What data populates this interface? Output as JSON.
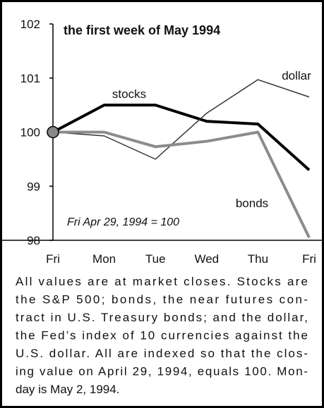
{
  "chart_data": {
    "type": "line",
    "title": "the first week of May 1994",
    "annotation": "Fri Apr 29, 1994 = 100",
    "categories": [
      "Fri",
      "Mon",
      "Tue",
      "Wed",
      "Thu",
      "Fri"
    ],
    "series": [
      {
        "name": "stocks",
        "color": "#000000",
        "values": [
          100,
          100.5,
          100.5,
          100.2,
          100.15,
          99.3
        ]
      },
      {
        "name": "dollar",
        "color": "#333333",
        "values": [
          100,
          99.93,
          99.5,
          100.35,
          100.97,
          100.65
        ]
      },
      {
        "name": "bonds",
        "color": "#8c8c8c",
        "values": [
          100,
          100,
          99.73,
          99.83,
          100,
          98.05
        ]
      }
    ],
    "ylim": [
      98,
      102
    ],
    "yticks": [
      98,
      99,
      100,
      101,
      102
    ]
  },
  "caption_lines": [
    "All values are at market closes. Stocks are",
    "the S&P 500; bonds, the near futures con-",
    "tract in U.S. Treasury bonds; and the dollar,",
    "the Fed’s index of 10 currencies against the",
    "U.S. dollar. All are indexed so that the clos-",
    "ing value on April 29, 1994, equals 100. Mon-",
    "day is May 2, 1994."
  ]
}
